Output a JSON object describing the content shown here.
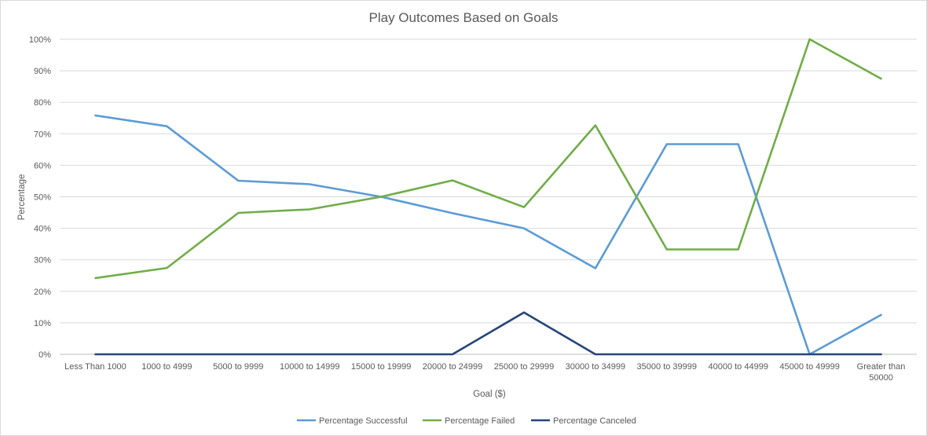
{
  "chart_data": {
    "type": "line",
    "title": "Play Outcomes Based on Goals",
    "xlabel": "Goal ($)",
    "ylabel": "Percentage",
    "ylim": [
      0,
      100
    ],
    "y_ticks": [
      "0%",
      "10%",
      "20%",
      "30%",
      "40%",
      "50%",
      "60%",
      "70%",
      "80%",
      "90%",
      "100%"
    ],
    "grid": true,
    "legend_position": "bottom",
    "categories": [
      "Less Than 1000",
      "1000 to 4999",
      "5000 to 9999",
      "10000 to 14999",
      "15000 to 19999",
      "20000 to 24999",
      "25000 to 29999",
      "30000 to 34999",
      "35000 to 39999",
      "40000 to 44999",
      "45000 to 49999",
      "Greater than 50000"
    ],
    "series": [
      {
        "name": "Percentage Successful",
        "color": "#5b9bd5",
        "values": [
          75.8,
          72.4,
          55.1,
          54.0,
          50.0,
          44.8,
          40.0,
          27.3,
          66.7,
          66.7,
          0,
          12.5
        ]
      },
      {
        "name": "Percentage Failed",
        "color": "#70ad47",
        "values": [
          24.2,
          27.4,
          44.9,
          46.0,
          50.0,
          55.2,
          46.7,
          72.7,
          33.3,
          33.3,
          100,
          87.5
        ]
      },
      {
        "name": "Percentage Canceled",
        "color": "#264478",
        "values": [
          0,
          0,
          0,
          0,
          0,
          0,
          13.3,
          0,
          0,
          0,
          0,
          0
        ]
      }
    ]
  }
}
